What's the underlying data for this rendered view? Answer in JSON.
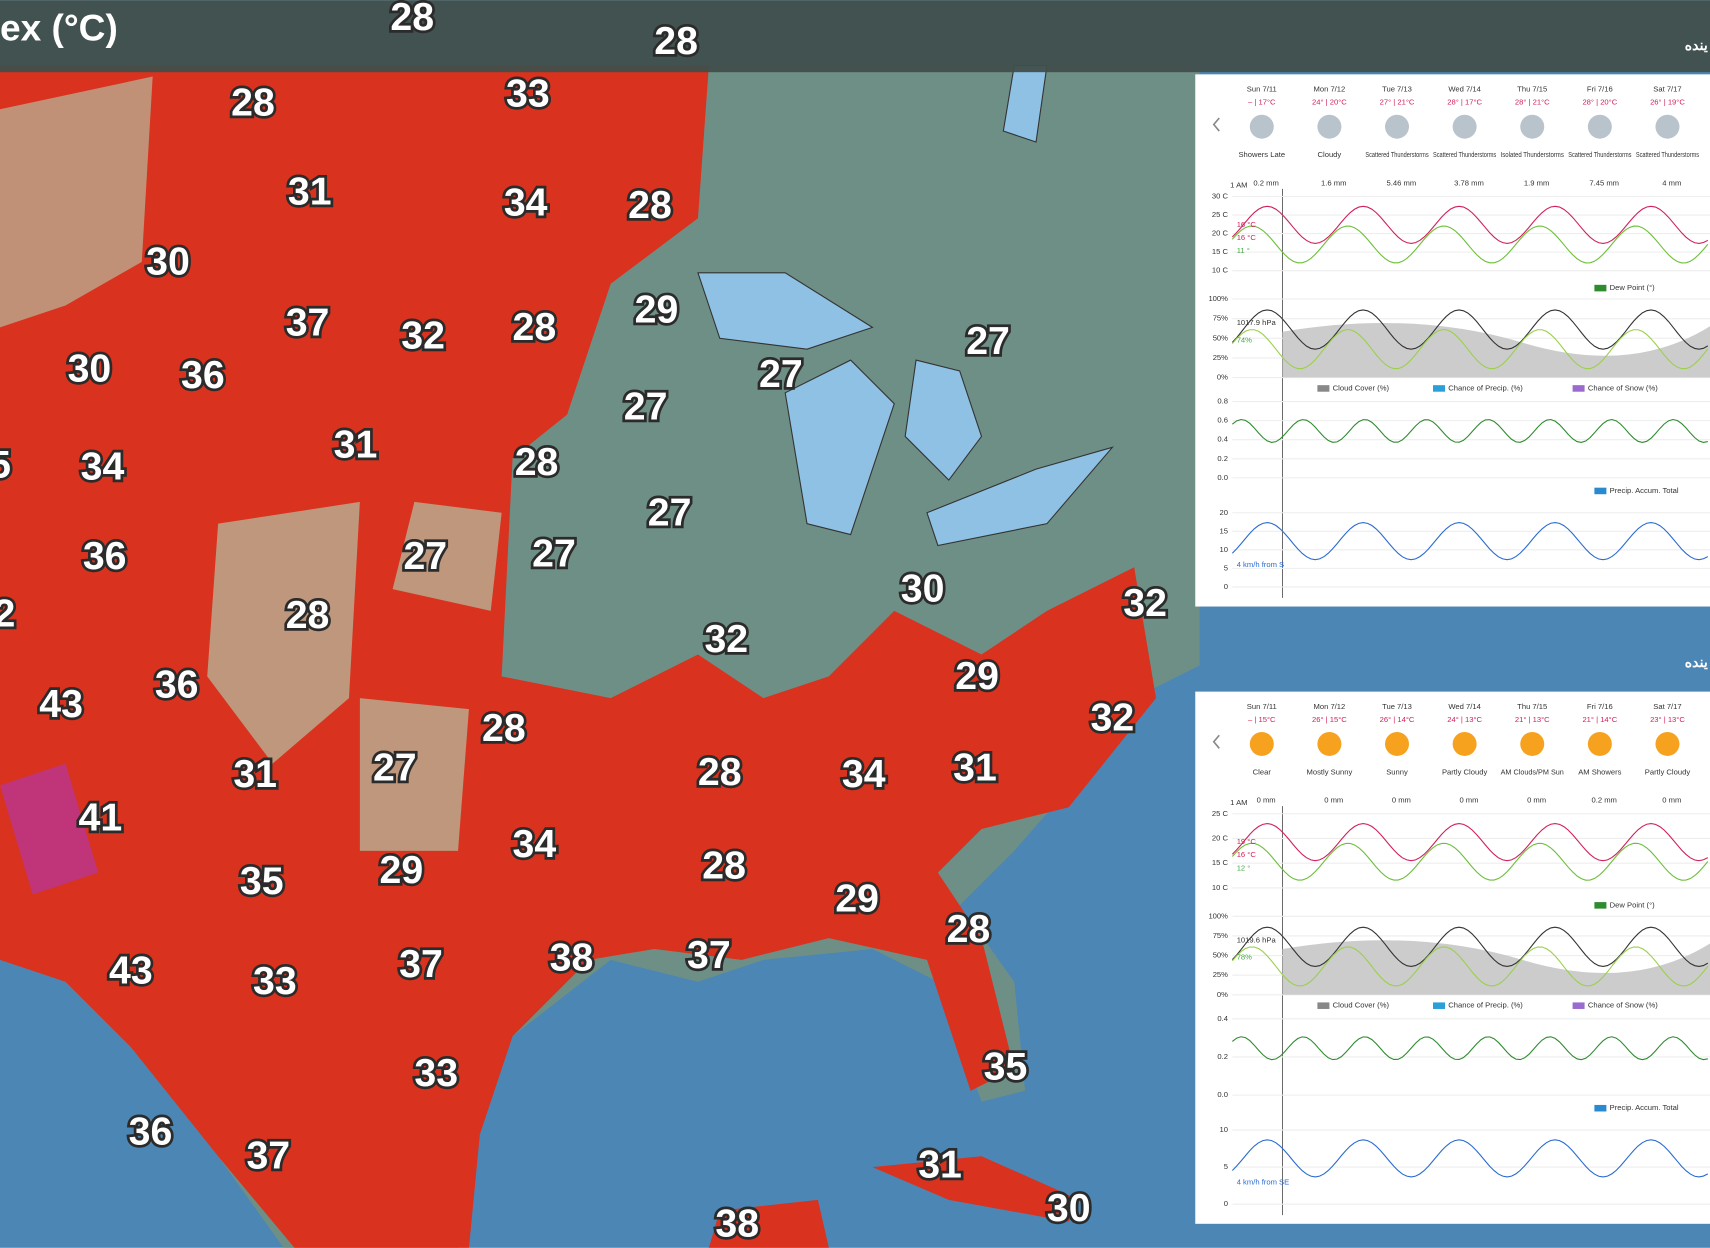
{
  "header": {
    "title": "ex (°C)"
  },
  "map": {
    "labels": [
      28,
      28,
      28,
      33,
      31,
      34,
      28,
      30,
      37,
      32,
      28,
      29,
      30,
      36,
      27,
      27,
      27,
      31,
      28,
      34,
      5,
      36,
      27,
      27,
      27,
      30,
      32,
      2,
      28,
      32,
      36,
      43,
      29,
      32,
      28,
      31,
      27,
      28,
      34,
      31,
      41,
      34,
      29,
      28,
      35,
      29,
      28,
      37,
      38,
      37,
      43,
      33,
      33,
      35,
      36,
      37,
      31,
      30,
      38
    ]
  },
  "panels": [
    {
      "heading": "ینده",
      "time": "1 AM",
      "days": [
        {
          "day": "Sun 7/11",
          "temp": "– | 17°C",
          "condition": "Showers Late",
          "precip": "0.2 mm"
        },
        {
          "day": "Mon 7/12",
          "temp": "24° | 20°C",
          "condition": "Cloudy",
          "precip": "1.6 mm"
        },
        {
          "day": "Tue 7/13",
          "temp": "27° | 21°C",
          "condition": "Scattered Thunderstorms",
          "precip": "5.46 mm"
        },
        {
          "day": "Wed 7/14",
          "temp": "28° | 17°C",
          "condition": "Scattered Thunderstorms",
          "precip": "3.78 mm"
        },
        {
          "day": "Thu 7/15",
          "temp": "28° | 21°C",
          "condition": "Isolated Thunderstorms",
          "precip": "1.9 mm"
        },
        {
          "day": "Fri 7/16",
          "temp": "28° | 20°C",
          "condition": "Scattered Thunderstorms",
          "precip": "7.45 mm"
        },
        {
          "day": "Sat 7/17",
          "temp": "26° | 19°C",
          "condition": "Scattered Thunderstorms",
          "precip": "4 mm"
        }
      ],
      "temp_axis": [
        "30 C",
        "25 C",
        "20 C",
        "15 C",
        "10 C"
      ],
      "pct_axis": [
        "100%",
        "75%",
        "50%",
        "25%",
        "0%"
      ],
      "precip_axis": [
        "0.8",
        "0.6",
        "0.4",
        "0.2",
        "0.0"
      ],
      "wind_axis": [
        "20",
        "15",
        "10",
        "5",
        "0"
      ],
      "annotations": {
        "temp": "16 °C",
        "feels": "16 °C",
        "dew": "11 °",
        "pressure": "1017.9 hPa",
        "humidity": "74%",
        "wind": "4 km/h from S"
      },
      "legend": {
        "dew": "Dew Point (°)",
        "cloud": "Cloud Cover (%)",
        "precip_chance": "Chance of Precip. (%)",
        "snow": "Chance of Snow (%)",
        "accum": "Precip. Accum. Total"
      }
    },
    {
      "heading": "ینده",
      "time": "1 AM",
      "days": [
        {
          "day": "Sun 7/11",
          "temp": "– | 15°C",
          "condition": "Clear",
          "precip": "0 mm"
        },
        {
          "day": "Mon 7/12",
          "temp": "26° | 15°C",
          "condition": "Mostly Sunny",
          "precip": "0 mm"
        },
        {
          "day": "Tue 7/13",
          "temp": "26° | 14°C",
          "condition": "Sunny",
          "precip": "0 mm"
        },
        {
          "day": "Wed 7/14",
          "temp": "24° | 13°C",
          "condition": "Partly Cloudy",
          "precip": "0 mm"
        },
        {
          "day": "Thu 7/15",
          "temp": "21° | 13°C",
          "condition": "AM Clouds/PM Sun",
          "precip": "0 mm"
        },
        {
          "day": "Fri 7/16",
          "temp": "21° | 14°C",
          "condition": "AM Showers",
          "precip": "0.2 mm"
        },
        {
          "day": "Sat 7/17",
          "temp": "23° | 13°C",
          "condition": "Partly Cloudy",
          "precip": "0 mm"
        }
      ],
      "temp_axis": [
        "25 C",
        "20 C",
        "15 C",
        "10 C"
      ],
      "pct_axis": [
        "100%",
        "75%",
        "50%",
        "25%",
        "0%"
      ],
      "precip_axis": [
        "0.4",
        "0.2",
        "0.0"
      ],
      "wind_axis": [
        "10",
        "5",
        "0"
      ],
      "annotations": {
        "temp": "19 °C",
        "feels": "16 °C",
        "dew": "12 °",
        "pressure": "1019.6 hPa",
        "humidity": "78%",
        "wind": "4 km/h from SE"
      },
      "legend": {
        "dew": "Dew Point (°)",
        "cloud": "Cloud Cover (%)",
        "precip_chance": "Chance of Precip. (%)",
        "snow": "Chance of Snow (%)",
        "accum": "Precip. Accum. Total"
      }
    }
  ]
}
